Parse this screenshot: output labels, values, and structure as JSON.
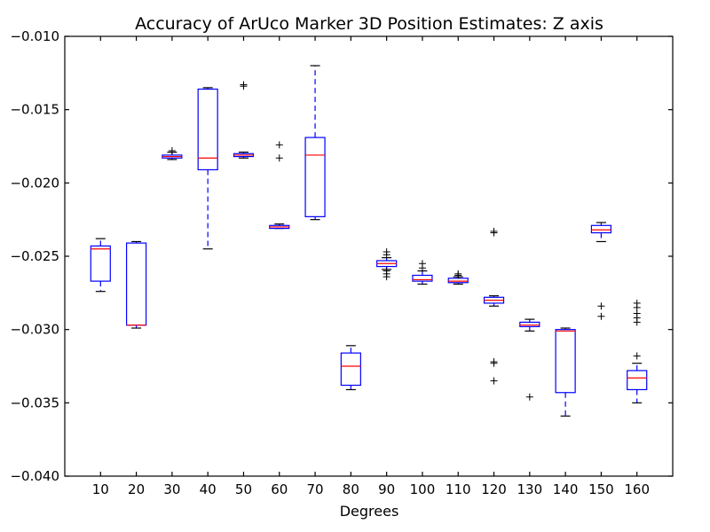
{
  "chart_data": {
    "type": "boxplot",
    "title": "Accuracy of ArUco Marker 3D Position Estimates: Z axis",
    "xlabel": "Degrees",
    "ylabel": "",
    "ylim": [
      -0.04,
      -0.01
    ],
    "yticks": [
      -0.01,
      -0.015,
      -0.02,
      -0.025,
      -0.03,
      -0.035,
      -0.04
    ],
    "ytick_labels": [
      "−0.010",
      "−0.015",
      "−0.020",
      "−0.025",
      "−0.030",
      "−0.035",
      "−0.040"
    ],
    "grid": false,
    "categories": [
      "10",
      "20",
      "30",
      "40",
      "50",
      "60",
      "70",
      "80",
      "90",
      "100",
      "110",
      "120",
      "130",
      "140",
      "150",
      "160"
    ],
    "colors": {
      "box": "#0000ff",
      "median": "#ff0000",
      "whisker": "#0000ff",
      "flier": "#000000"
    },
    "boxes": [
      {
        "category": "10",
        "whislo": -0.0274,
        "q1": -0.0267,
        "med": -0.0245,
        "q3": -0.0243,
        "whishi": -0.0238,
        "fliers": []
      },
      {
        "category": "20",
        "whislo": -0.0299,
        "q1": -0.0297,
        "med": -0.0297,
        "q3": -0.0241,
        "whishi": -0.024,
        "fliers": []
      },
      {
        "category": "30",
        "whislo": -0.0184,
        "q1": -0.0183,
        "med": -0.0182,
        "q3": -0.0181,
        "whishi": -0.0179,
        "fliers": [
          -0.0178
        ]
      },
      {
        "category": "40",
        "whislo": -0.0245,
        "q1": -0.0191,
        "med": -0.0183,
        "q3": -0.0136,
        "whishi": -0.0135,
        "fliers": []
      },
      {
        "category": "50",
        "whislo": -0.0183,
        "q1": -0.0182,
        "med": -0.0181,
        "q3": -0.018,
        "whishi": -0.0179,
        "fliers": [
          -0.0133,
          -0.0134
        ]
      },
      {
        "category": "60",
        "whislo": -0.0231,
        "q1": -0.0231,
        "med": -0.023,
        "q3": -0.0229,
        "whishi": -0.0228,
        "fliers": [
          -0.0174,
          -0.0183
        ]
      },
      {
        "category": "70",
        "whislo": -0.0225,
        "q1": -0.0223,
        "med": -0.0181,
        "q3": -0.0169,
        "whishi": -0.012,
        "fliers": []
      },
      {
        "category": "80",
        "whislo": -0.0341,
        "q1": -0.0338,
        "med": -0.0325,
        "q3": -0.0316,
        "whishi": -0.0311,
        "fliers": []
      },
      {
        "category": "90",
        "whislo": -0.0259,
        "q1": -0.0257,
        "med": -0.0255,
        "q3": -0.0253,
        "whishi": -0.0251,
        "fliers": [
          -0.0247,
          -0.0249,
          -0.0262,
          -0.0264,
          -0.026
        ]
      },
      {
        "category": "100",
        "whislo": -0.0269,
        "q1": -0.0267,
        "med": -0.0266,
        "q3": -0.0263,
        "whishi": -0.026,
        "fliers": [
          -0.0255,
          -0.0258
        ]
      },
      {
        "category": "110",
        "whislo": -0.0269,
        "q1": -0.0268,
        "med": -0.0267,
        "q3": -0.0265,
        "whishi": -0.0264,
        "fliers": [
          -0.0262,
          -0.0263
        ]
      },
      {
        "category": "120",
        "whislo": -0.0284,
        "q1": -0.0282,
        "med": -0.028,
        "q3": -0.0278,
        "whishi": -0.0277,
        "fliers": [
          -0.0233,
          -0.0234,
          -0.0322,
          -0.0323,
          -0.0335
        ]
      },
      {
        "category": "130",
        "whislo": -0.0301,
        "q1": -0.0298,
        "med": -0.0297,
        "q3": -0.0295,
        "whishi": -0.0293,
        "fliers": [
          -0.0346
        ]
      },
      {
        "category": "140",
        "whislo": -0.0359,
        "q1": -0.0343,
        "med": -0.0301,
        "q3": -0.03,
        "whishi": -0.0299,
        "fliers": []
      },
      {
        "category": "150",
        "whislo": -0.024,
        "q1": -0.0234,
        "med": -0.0232,
        "q3": -0.0229,
        "whishi": -0.0227,
        "fliers": [
          -0.0284,
          -0.0291
        ]
      },
      {
        "category": "160",
        "whislo": -0.035,
        "q1": -0.0341,
        "med": -0.0333,
        "q3": -0.0328,
        "whishi": -0.0323,
        "fliers": [
          -0.0282,
          -0.0285,
          -0.0289,
          -0.0292,
          -0.0295,
          -0.0318
        ]
      }
    ]
  }
}
